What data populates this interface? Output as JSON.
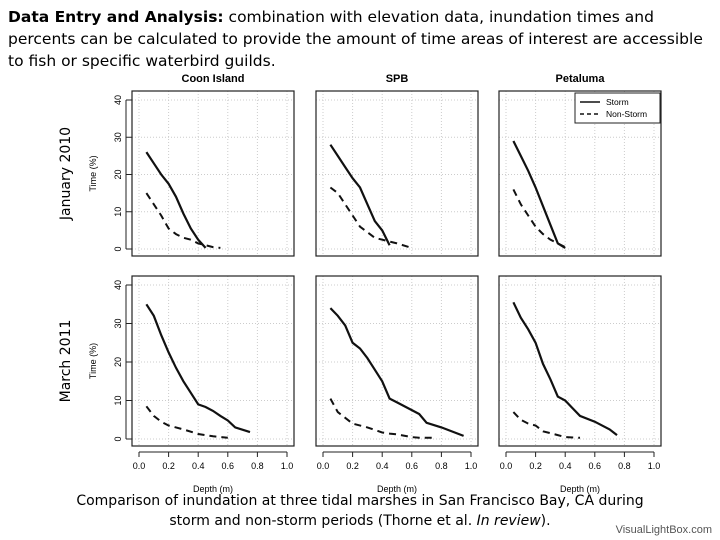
{
  "header": {
    "bold": "Data Entry and Analysis:",
    "text": " combination with elevation data, inundation times and percents can be calculated to provide the amount of time areas of interest are accessible to fish or specific waterbird guilds."
  },
  "caption": {
    "line1": "Comparison of inundation at three tidal marshes in San Francisco Bay, CA during",
    "line2a": "storm and non-storm periods (Thorne et al. ",
    "line2i": "In review",
    "line2b": ")."
  },
  "watermark": "VisualLightBox.com",
  "chart_data": {
    "type": "line",
    "columns": [
      "Coon Island",
      "SPB",
      "Petaluma"
    ],
    "rows": [
      "January 2010",
      "March 2011"
    ],
    "xlabel": "Depth (m)",
    "ylabel": "Time (%)",
    "xlim": [
      0,
      1
    ],
    "ylim": [
      0,
      40
    ],
    "xticks": [
      "0.0",
      "0.2",
      "0.4",
      "0.6",
      "0.8",
      "1.0"
    ],
    "yticks": [
      "0",
      "10",
      "20",
      "30",
      "40"
    ],
    "grid": true,
    "legend": {
      "placement": "top-right",
      "entries": [
        "Storm",
        "Non-Storm"
      ]
    },
    "panels": [
      {
        "row": 0,
        "col": 0,
        "storm": [
          [
            0.05,
            26
          ],
          [
            0.1,
            23
          ],
          [
            0.15,
            20
          ],
          [
            0.2,
            17.5
          ],
          [
            0.25,
            14
          ],
          [
            0.3,
            9.5
          ],
          [
            0.35,
            5.5
          ],
          [
            0.4,
            2.5
          ],
          [
            0.45,
            0.3
          ]
        ],
        "nonstorm": [
          [
            0.05,
            15
          ],
          [
            0.1,
            12
          ],
          [
            0.15,
            9
          ],
          [
            0.2,
            5.5
          ],
          [
            0.25,
            4
          ],
          [
            0.3,
            3
          ],
          [
            0.35,
            2.5
          ],
          [
            0.4,
            1.5
          ],
          [
            0.5,
            0.5
          ],
          [
            0.55,
            0.3
          ]
        ]
      },
      {
        "row": 0,
        "col": 1,
        "storm": [
          [
            0.05,
            28
          ],
          [
            0.1,
            25
          ],
          [
            0.15,
            22
          ],
          [
            0.2,
            19
          ],
          [
            0.25,
            16.5
          ],
          [
            0.3,
            12
          ],
          [
            0.35,
            7.5
          ],
          [
            0.4,
            5
          ],
          [
            0.45,
            1
          ]
        ],
        "nonstorm": [
          [
            0.05,
            16.5
          ],
          [
            0.1,
            15
          ],
          [
            0.15,
            12
          ],
          [
            0.2,
            9
          ],
          [
            0.25,
            6
          ],
          [
            0.3,
            4.5
          ],
          [
            0.35,
            3
          ],
          [
            0.4,
            2.5
          ],
          [
            0.45,
            2
          ],
          [
            0.5,
            1.5
          ],
          [
            0.6,
            0.3
          ]
        ]
      },
      {
        "row": 0,
        "col": 2,
        "storm": [
          [
            0.05,
            29
          ],
          [
            0.1,
            25
          ],
          [
            0.15,
            21
          ],
          [
            0.2,
            16.5
          ],
          [
            0.25,
            11.5
          ],
          [
            0.3,
            6.5
          ],
          [
            0.35,
            1.5
          ],
          [
            0.4,
            0.3
          ]
        ],
        "nonstorm": [
          [
            0.05,
            16
          ],
          [
            0.1,
            12
          ],
          [
            0.15,
            9
          ],
          [
            0.2,
            6
          ],
          [
            0.25,
            4
          ],
          [
            0.3,
            2.5
          ],
          [
            0.35,
            1.5
          ],
          [
            0.4,
            0.5
          ]
        ]
      },
      {
        "row": 1,
        "col": 0,
        "storm": [
          [
            0.05,
            35
          ],
          [
            0.1,
            32
          ],
          [
            0.15,
            27
          ],
          [
            0.2,
            22.5
          ],
          [
            0.25,
            18.5
          ],
          [
            0.3,
            15
          ],
          [
            0.35,
            12
          ],
          [
            0.4,
            9
          ],
          [
            0.45,
            8.3
          ],
          [
            0.5,
            7.3
          ],
          [
            0.55,
            6
          ],
          [
            0.6,
            4.8
          ],
          [
            0.65,
            3
          ],
          [
            0.75,
            1.8
          ]
        ],
        "nonstorm": [
          [
            0.05,
            8.5
          ],
          [
            0.1,
            6
          ],
          [
            0.15,
            4.5
          ],
          [
            0.2,
            3.5
          ],
          [
            0.3,
            2.5
          ],
          [
            0.4,
            1.3
          ],
          [
            0.5,
            0.7
          ],
          [
            0.6,
            0.3
          ]
        ]
      },
      {
        "row": 1,
        "col": 1,
        "storm": [
          [
            0.05,
            34
          ],
          [
            0.1,
            32
          ],
          [
            0.15,
            29.5
          ],
          [
            0.2,
            25
          ],
          [
            0.25,
            23.5
          ],
          [
            0.3,
            21
          ],
          [
            0.35,
            18
          ],
          [
            0.4,
            15
          ],
          [
            0.45,
            10.5
          ],
          [
            0.5,
            9.5
          ],
          [
            0.6,
            7.5
          ],
          [
            0.65,
            6.5
          ],
          [
            0.7,
            4.2
          ],
          [
            0.8,
            3
          ],
          [
            0.95,
            0.8
          ]
        ],
        "nonstorm": [
          [
            0.05,
            10.5
          ],
          [
            0.1,
            7
          ],
          [
            0.15,
            5.5
          ],
          [
            0.2,
            4
          ],
          [
            0.3,
            3
          ],
          [
            0.4,
            1.7
          ],
          [
            0.45,
            1.4
          ],
          [
            0.5,
            1.2
          ],
          [
            0.6,
            0.5
          ],
          [
            0.65,
            0.3
          ],
          [
            0.75,
            0.3
          ]
        ]
      },
      {
        "row": 1,
        "col": 2,
        "storm": [
          [
            0.05,
            35.5
          ],
          [
            0.1,
            31.5
          ],
          [
            0.15,
            28.5
          ],
          [
            0.2,
            25
          ],
          [
            0.25,
            19.5
          ],
          [
            0.3,
            15.5
          ],
          [
            0.35,
            11
          ],
          [
            0.4,
            10
          ],
          [
            0.45,
            8
          ],
          [
            0.5,
            6
          ],
          [
            0.6,
            4.5
          ],
          [
            0.7,
            2.5
          ],
          [
            0.75,
            1
          ]
        ],
        "nonstorm": [
          [
            0.05,
            7
          ],
          [
            0.1,
            5
          ],
          [
            0.15,
            4
          ],
          [
            0.2,
            3.5
          ],
          [
            0.25,
            2
          ],
          [
            0.35,
            1
          ],
          [
            0.4,
            0.5
          ],
          [
            0.5,
            0.3
          ]
        ]
      }
    ]
  }
}
